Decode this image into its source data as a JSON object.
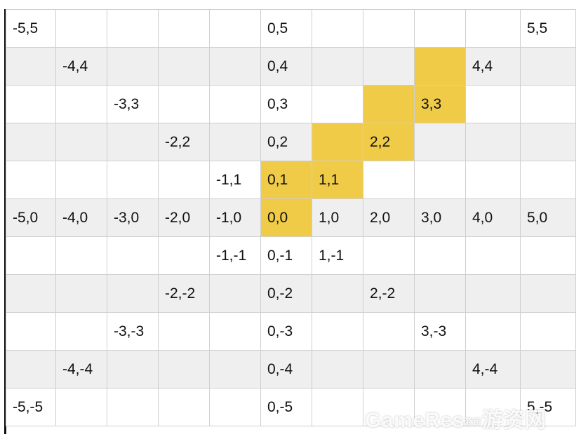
{
  "grid": {
    "highlight_color": "#f0cb48",
    "rows": [
      {
        "cells": [
          {
            "t": "-5,5"
          },
          {
            "t": ""
          },
          {
            "t": ""
          },
          {
            "t": ""
          },
          {
            "t": ""
          },
          {
            "t": "0,5"
          },
          {
            "t": ""
          },
          {
            "t": ""
          },
          {
            "t": ""
          },
          {
            "t": ""
          },
          {
            "t": "5,5"
          }
        ]
      },
      {
        "cells": [
          {
            "t": ""
          },
          {
            "t": "-4,4"
          },
          {
            "t": ""
          },
          {
            "t": ""
          },
          {
            "t": ""
          },
          {
            "t": "0,4"
          },
          {
            "t": ""
          },
          {
            "t": ""
          },
          {
            "t": "",
            "hl": true
          },
          {
            "t": "4,4"
          },
          {
            "t": ""
          }
        ]
      },
      {
        "cells": [
          {
            "t": ""
          },
          {
            "t": ""
          },
          {
            "t": "-3,3"
          },
          {
            "t": ""
          },
          {
            "t": ""
          },
          {
            "t": "0,3"
          },
          {
            "t": ""
          },
          {
            "t": "",
            "hl": true
          },
          {
            "t": "3,3",
            "hl": true
          },
          {
            "t": ""
          },
          {
            "t": ""
          }
        ]
      },
      {
        "cells": [
          {
            "t": ""
          },
          {
            "t": ""
          },
          {
            "t": ""
          },
          {
            "t": "-2,2"
          },
          {
            "t": ""
          },
          {
            "t": "0,2"
          },
          {
            "t": "",
            "hl": true
          },
          {
            "t": "2,2",
            "hl": true
          },
          {
            "t": ""
          },
          {
            "t": ""
          },
          {
            "t": ""
          }
        ]
      },
      {
        "cells": [
          {
            "t": ""
          },
          {
            "t": ""
          },
          {
            "t": ""
          },
          {
            "t": ""
          },
          {
            "t": "-1,1"
          },
          {
            "t": "0,1",
            "hl": true
          },
          {
            "t": "1,1",
            "hl": true
          },
          {
            "t": ""
          },
          {
            "t": ""
          },
          {
            "t": ""
          },
          {
            "t": ""
          }
        ]
      },
      {
        "cells": [
          {
            "t": "-5,0"
          },
          {
            "t": "-4,0"
          },
          {
            "t": "-3,0"
          },
          {
            "t": "-2,0"
          },
          {
            "t": "-1,0"
          },
          {
            "t": "0,0",
            "hl": true
          },
          {
            "t": "1,0"
          },
          {
            "t": "2,0"
          },
          {
            "t": "3,0"
          },
          {
            "t": "4,0"
          },
          {
            "t": "5,0"
          }
        ]
      },
      {
        "cells": [
          {
            "t": ""
          },
          {
            "t": ""
          },
          {
            "t": ""
          },
          {
            "t": ""
          },
          {
            "t": "-1,-1"
          },
          {
            "t": "0,-1"
          },
          {
            "t": "1,-1"
          },
          {
            "t": ""
          },
          {
            "t": ""
          },
          {
            "t": ""
          },
          {
            "t": ""
          }
        ]
      },
      {
        "cells": [
          {
            "t": ""
          },
          {
            "t": ""
          },
          {
            "t": ""
          },
          {
            "t": "-2,-2"
          },
          {
            "t": ""
          },
          {
            "t": "0,-2"
          },
          {
            "t": ""
          },
          {
            "t": "2,-2"
          },
          {
            "t": ""
          },
          {
            "t": ""
          },
          {
            "t": ""
          }
        ]
      },
      {
        "cells": [
          {
            "t": ""
          },
          {
            "t": ""
          },
          {
            "t": "-3,-3"
          },
          {
            "t": ""
          },
          {
            "t": ""
          },
          {
            "t": "0,-3"
          },
          {
            "t": ""
          },
          {
            "t": ""
          },
          {
            "t": "3,-3"
          },
          {
            "t": ""
          },
          {
            "t": ""
          }
        ]
      },
      {
        "cells": [
          {
            "t": ""
          },
          {
            "t": "-4,-4"
          },
          {
            "t": ""
          },
          {
            "t": ""
          },
          {
            "t": ""
          },
          {
            "t": "0,-4"
          },
          {
            "t": ""
          },
          {
            "t": ""
          },
          {
            "t": ""
          },
          {
            "t": "4,-4"
          },
          {
            "t": ""
          }
        ]
      },
      {
        "cells": [
          {
            "t": "-5,-5"
          },
          {
            "t": ""
          },
          {
            "t": ""
          },
          {
            "t": ""
          },
          {
            "t": ""
          },
          {
            "t": "0,-5"
          },
          {
            "t": ""
          },
          {
            "t": ""
          },
          {
            "t": ""
          },
          {
            "t": ""
          },
          {
            "t": "5,-5"
          }
        ]
      }
    ]
  },
  "watermark": {
    "brand": "GameRes",
    "sep": "游资",
    "site": "游资网"
  }
}
